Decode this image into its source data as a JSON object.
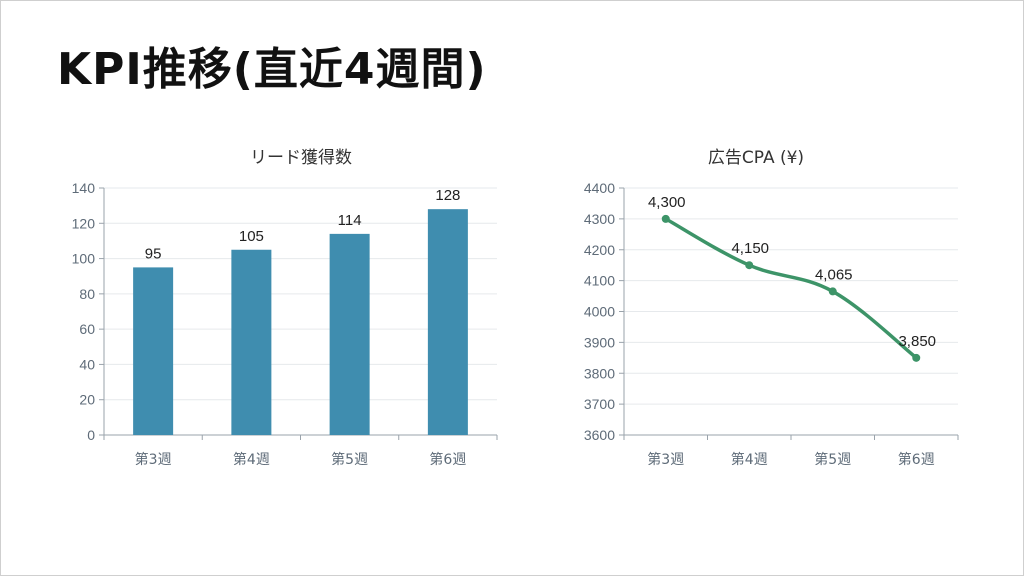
{
  "slide": {
    "title": "KPI推移(直近4週間)"
  },
  "chart_data": [
    {
      "type": "bar",
      "title": "リード獲得数",
      "categories": [
        "第3週",
        "第4週",
        "第5週",
        "第6週"
      ],
      "values": [
        95,
        105,
        114,
        128
      ],
      "data_labels": [
        "95",
        "105",
        "114",
        "128"
      ],
      "ylim": [
        0,
        140
      ],
      "yticks": [
        0,
        20,
        40,
        60,
        80,
        100,
        120,
        140
      ],
      "color": "#3f8daf",
      "grid": true
    },
    {
      "type": "line",
      "title": "広告CPA (¥)",
      "categories": [
        "第3週",
        "第4週",
        "第5週",
        "第6週"
      ],
      "values": [
        4300,
        4150,
        4065,
        3850
      ],
      "data_labels": [
        "4,300",
        "4,150",
        "4,065",
        "3,850"
      ],
      "ylim": [
        3600,
        4400
      ],
      "yticks": [
        3600,
        3700,
        3800,
        3900,
        4000,
        4100,
        4200,
        4300,
        4400
      ],
      "color": "#3d9468",
      "grid": true
    }
  ]
}
